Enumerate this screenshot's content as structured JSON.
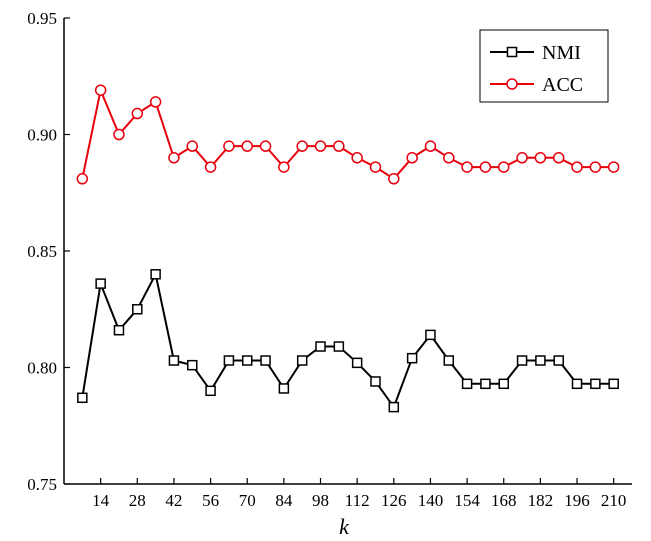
{
  "chart_data": {
    "type": "line",
    "xlabel": "k",
    "ylabel": "",
    "xlim": [
      0,
      217
    ],
    "ylim": [
      0.75,
      0.95
    ],
    "x_ticks": [
      14,
      28,
      42,
      56,
      70,
      84,
      98,
      112,
      126,
      140,
      154,
      168,
      182,
      196,
      210
    ],
    "y_ticks": [
      0.75,
      0.8,
      0.85,
      0.9,
      0.95
    ],
    "y_tick_labels": [
      "0.75",
      "0.80",
      "0.85",
      "0.90",
      "0.95"
    ],
    "x": [
      7,
      14,
      21,
      28,
      35,
      42,
      49,
      56,
      63,
      70,
      77,
      84,
      91,
      98,
      105,
      112,
      119,
      126,
      133,
      140,
      147,
      154,
      161,
      168,
      175,
      182,
      189,
      196,
      203,
      210
    ],
    "series": [
      {
        "name": "NMI",
        "color": "#000000",
        "marker": "square",
        "values": [
          0.787,
          0.836,
          0.816,
          0.825,
          0.84,
          0.803,
          0.801,
          0.79,
          0.803,
          0.803,
          0.803,
          0.791,
          0.803,
          0.809,
          0.809,
          0.802,
          0.794,
          0.783,
          0.804,
          0.814,
          0.803,
          0.793,
          0.793,
          0.793,
          0.803,
          0.803,
          0.803,
          0.793,
          0.793,
          0.793
        ]
      },
      {
        "name": "ACC",
        "color": "#e8000b",
        "marker": "circle",
        "values": [
          0.881,
          0.919,
          0.9,
          0.909,
          0.914,
          0.89,
          0.895,
          0.886,
          0.895,
          0.895,
          0.895,
          0.886,
          0.895,
          0.895,
          0.895,
          0.89,
          0.886,
          0.881,
          0.89,
          0.895,
          0.89,
          0.886,
          0.886,
          0.886,
          0.89,
          0.89,
          0.89,
          0.886,
          0.886,
          0.886
        ]
      }
    ],
    "legend_position": "top-right",
    "grid": false
  }
}
